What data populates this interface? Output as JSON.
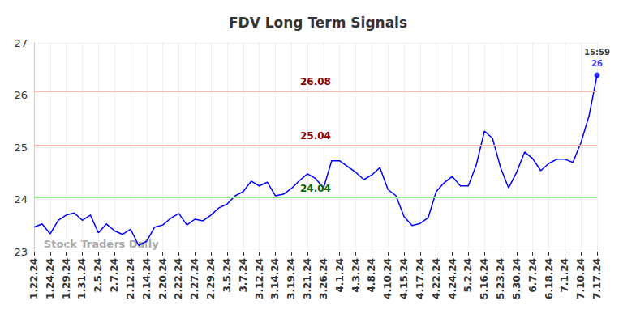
{
  "chart_data": {
    "type": "line",
    "title": "FDV Long Term Signals",
    "categories": [
      "1.22.24",
      null,
      "1.24.24",
      null,
      "1.29.24",
      null,
      "1.31.24",
      null,
      "2.5.24",
      null,
      "2.7.24",
      null,
      "2.12.24",
      null,
      "2.14.24",
      null,
      "2.20.24",
      null,
      "2.22.24",
      null,
      "2.27.24",
      null,
      "2.29.24",
      null,
      "3.5.24",
      null,
      "3.7.24",
      null,
      "3.12.24",
      null,
      "3.14.24",
      null,
      "3.19.24",
      null,
      "3.21.24",
      null,
      "3.26.24",
      null,
      "4.1.24",
      null,
      "4.3.24",
      null,
      "4.8.24",
      null,
      "4.10.24",
      null,
      "4.15.24",
      null,
      "4.17.24",
      null,
      "4.22.24",
      null,
      "4.24.24",
      null,
      "5.2.24",
      null,
      "5.16.24",
      null,
      "5.23.24",
      null,
      "5.30.24",
      null,
      "6.7.24",
      null,
      "6.18.24",
      null,
      "7.1.24",
      null,
      "7.10.24",
      null,
      "7.17.24"
    ],
    "values": [
      23.47,
      23.53,
      23.34,
      23.6,
      23.7,
      23.74,
      23.6,
      23.7,
      23.36,
      23.53,
      23.4,
      23.33,
      23.43,
      23.12,
      23.2,
      23.47,
      23.51,
      23.64,
      23.73,
      23.51,
      23.62,
      23.59,
      23.7,
      23.84,
      23.91,
      24.07,
      24.15,
      24.35,
      24.26,
      24.33,
      24.07,
      24.1,
      24.21,
      24.36,
      24.49,
      24.4,
      24.22,
      24.74,
      24.74,
      24.63,
      24.52,
      24.38,
      24.47,
      24.61,
      24.19,
      24.07,
      23.67,
      23.5,
      23.54,
      23.65,
      24.15,
      24.32,
      24.44,
      24.26,
      24.26,
      24.67,
      25.31,
      25.17,
      24.61,
      24.22,
      24.52,
      24.91,
      24.78,
      24.55,
      24.69,
      24.77,
      24.77,
      24.71,
      25.09,
      25.6,
      26.38
    ],
    "color": "#0000ff",
    "ylim": [
      23,
      27
    ],
    "yticks": [
      23,
      24,
      25,
      26,
      27
    ],
    "grid": true,
    "signal_lines": [
      {
        "value": 26.08,
        "color": "#ffb6b6",
        "text_color": "#8b0000"
      },
      {
        "value": 25.04,
        "color": "#ffb6b6",
        "text_color": "#8b0000"
      },
      {
        "value": 24.04,
        "color": "#90ee90",
        "text_color": "#006400"
      }
    ],
    "last_point": {
      "time_label": "15:59",
      "value_label": "26"
    },
    "watermark": "Stock Traders Daily"
  }
}
